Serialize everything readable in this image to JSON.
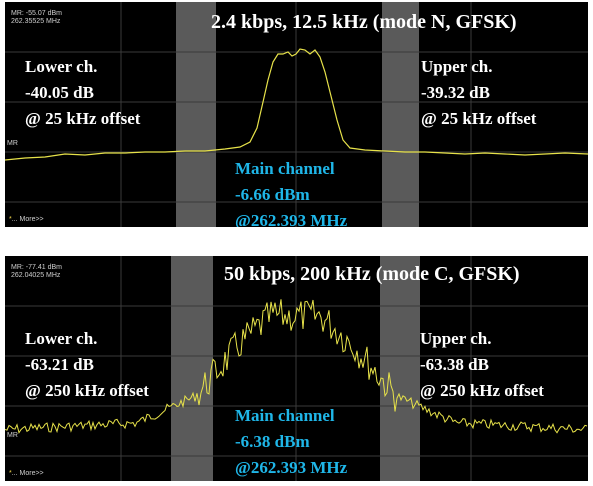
{
  "top": {
    "marker_level": "MR: -55.07 dBm",
    "marker_freq": "262.35525 MHz",
    "mr_tag": "MR",
    "more": "More>>",
    "title": "2.4 kbps, 12.5 kHz (mode N, GFSK)",
    "lower": {
      "name": "Lower ch.",
      "value": "-40.05 dB",
      "offset": "@ 25 kHz offset"
    },
    "upper": {
      "name": "Upper ch.",
      "value": "-39.32 dB",
      "offset": "@ 25 kHz offset"
    },
    "main": {
      "name": "Main channel",
      "value": "-6.66 dBm",
      "freq": "@262.393 MHz"
    }
  },
  "bottom": {
    "marker_level": "MR: -77.41 dBm",
    "marker_freq": "262.04025 MHz",
    "mr_tag": "MR",
    "more": "More>>",
    "title": "50 kbps, 200 kHz (mode C, GFSK)",
    "lower": {
      "name": "Lower ch.",
      "value": "-63.21 dB",
      "offset": "@ 250 kHz offset"
    },
    "upper": {
      "name": "Upper ch.",
      "value": "-63.38 dB",
      "offset": "@ 250 kHz offset"
    },
    "main": {
      "name": "Main channel",
      "value": "-6.38 dBm",
      "freq": "@262.393 MHz"
    }
  },
  "colors": {
    "trace": "#e7e24a",
    "adjacent_band": "#5a5a5a",
    "grid": "#3a3a3a",
    "main_label": "#1fb6e8",
    "text": "#ffffff"
  }
}
